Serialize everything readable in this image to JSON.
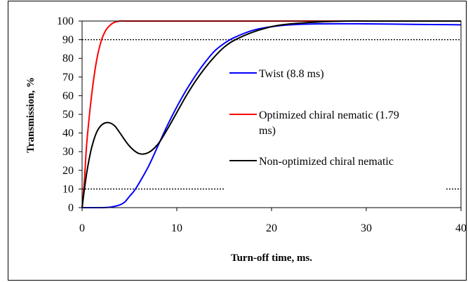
{
  "chart_data": {
    "type": "line",
    "xlabel": "Turn-off time, ms.",
    "ylabel": "Transmission, %",
    "xlim": [
      0,
      40
    ],
    "ylim": [
      0,
      100
    ],
    "xticks": [
      0,
      10,
      20,
      30,
      40
    ],
    "yticks": [
      0,
      10,
      20,
      30,
      40,
      50,
      60,
      70,
      80,
      90,
      100
    ],
    "reference_lines": [
      {
        "y": 90,
        "style": "dotted",
        "color": "#000000"
      },
      {
        "y": 10,
        "style": "dotted",
        "color": "#000000"
      }
    ],
    "legend_position": "center-right",
    "series": [
      {
        "name": "Twist (8.8 ms)",
        "color": "#0000ff",
        "x": [
          0,
          2,
          3,
          4,
          4.5,
          5,
          5.5,
          6,
          7,
          8,
          9,
          10,
          11,
          12,
          13,
          14,
          15,
          16,
          18,
          20,
          22,
          25,
          30,
          35,
          40
        ],
        "y": [
          0,
          0,
          0.3,
          1.5,
          3,
          6,
          9,
          13,
          22,
          33,
          44,
          54,
          63,
          71,
          78,
          84,
          88,
          91,
          95,
          97,
          98,
          98.5,
          98.5,
          98.2,
          98
        ]
      },
      {
        "name": "Optimized chiral nematic (1.79 ms)",
        "color": "#ff0000",
        "x": [
          0,
          0.25,
          0.5,
          1,
          1.5,
          2,
          2.5,
          3,
          3.5,
          4,
          5,
          10,
          20,
          30,
          40
        ],
        "y": [
          0,
          15,
          35,
          60,
          78,
          89,
          95,
          98,
          99.5,
          100,
          100,
          100,
          100,
          100,
          100
        ]
      },
      {
        "name": "Non-optimized chiral nematic",
        "color": "#000000",
        "x": [
          0,
          0.3,
          0.6,
          1,
          1.5,
          2,
          2.5,
          3,
          3.5,
          4,
          5,
          6,
          7,
          8,
          9,
          10,
          11,
          12,
          13,
          14,
          15,
          16,
          18,
          20,
          22,
          25,
          28,
          30,
          35,
          40
        ],
        "y": [
          0,
          12,
          22,
          32,
          40,
          44,
          45.5,
          45.3,
          43.5,
          40,
          33,
          29,
          29.5,
          34,
          42,
          51,
          60,
          68,
          75,
          81,
          86,
          89.5,
          94,
          97,
          98.5,
          99.5,
          100,
          100,
          100,
          100
        ]
      }
    ]
  }
}
